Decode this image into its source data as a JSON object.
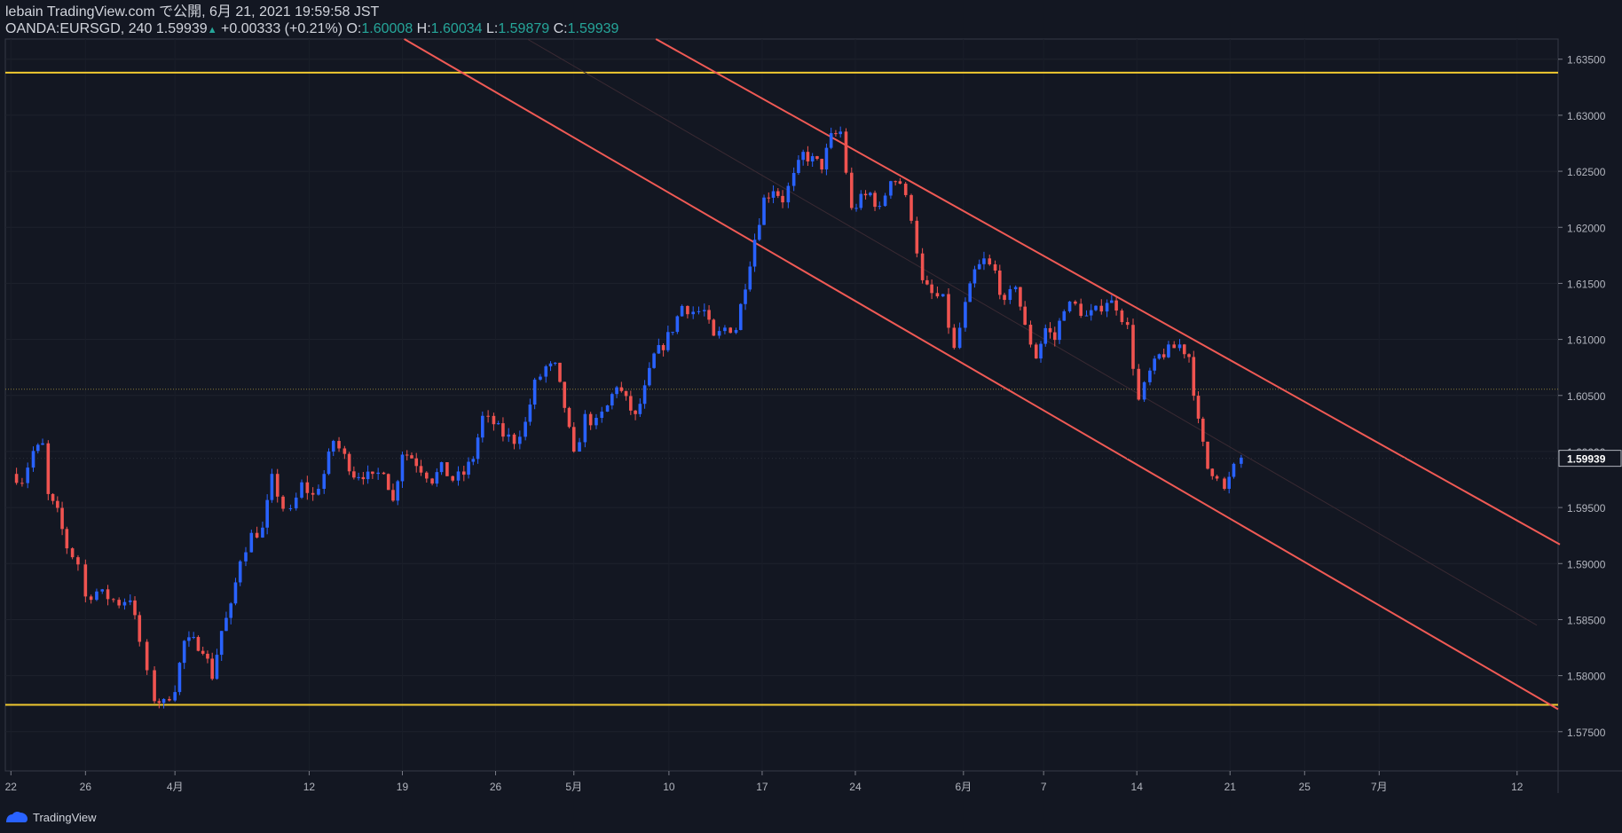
{
  "header": {
    "line1": "lebain TradingView.com で公開, 6月 21, 2021 19:59:58 JST",
    "symbol": "OANDA:EURSGD, 240",
    "last": "1.59939",
    "change": "+0.00333 (+0.21%)",
    "o_label": "O:",
    "o_value": "1.60008",
    "h_label": "H:",
    "h_value": "1.60034",
    "l_label": "L:",
    "l_value": "1.59879",
    "c_label": "C:",
    "c_value": "1.59939"
  },
  "footer": {
    "brand": "TradingView"
  },
  "colors": {
    "background": "#131722",
    "up": "#2962ff",
    "down": "#ef5350",
    "horizontal": "#f0c930",
    "channel": "#f05a55",
    "last_price_tag": "#131722"
  },
  "chart_data": {
    "type": "candlestick",
    "y_ticks": [
      "1.63500",
      "1.63000",
      "1.62500",
      "1.62000",
      "1.61500",
      "1.61000",
      "1.60500",
      "1.60000",
      "1.59500",
      "1.59000",
      "1.58500",
      "1.58000",
      "1.57500"
    ],
    "ylim": [
      1.5715,
      1.6368
    ],
    "last_price_label": "1.59939",
    "x_ticks": [
      {
        "label": "22",
        "pos": 0.0
      },
      {
        "label": "26",
        "pos": 4
      },
      {
        "label": "4月",
        "pos": 8.8
      },
      {
        "label": "12",
        "pos": 16
      },
      {
        "label": "19",
        "pos": 21
      },
      {
        "label": "26",
        "pos": 26
      },
      {
        "label": "5月",
        "pos": 30.2
      },
      {
        "label": "10",
        "pos": 35.3
      },
      {
        "label": "17",
        "pos": 40.3
      },
      {
        "label": "24",
        "pos": 45.3
      },
      {
        "label": "6月",
        "pos": 51.1
      },
      {
        "label": "7",
        "pos": 55.4
      },
      {
        "label": "14",
        "pos": 60.4
      },
      {
        "label": "21",
        "pos": 65.4
      },
      {
        "label": "25",
        "pos": 69.4
      },
      {
        "label": "7月",
        "pos": 73.4
      },
      {
        "label": "12",
        "pos": 80.8
      }
    ],
    "xlim": [
      -0.3,
      83
    ],
    "close_path": [
      [
        0,
        1.598
      ],
      [
        0.6,
        1.5975
      ],
      [
        1.2,
        1.6
      ],
      [
        1.7,
        1.6005
      ],
      [
        2,
        1.596
      ],
      [
        2.5,
        1.5945
      ],
      [
        3,
        1.5915
      ],
      [
        3.6,
        1.59
      ],
      [
        4,
        1.587
      ],
      [
        4.6,
        1.5875
      ],
      [
        5.2,
        1.587
      ],
      [
        5.8,
        1.5865
      ],
      [
        6.4,
        1.587
      ],
      [
        6.9,
        1.583
      ],
      [
        7.3,
        1.58
      ],
      [
        7.7,
        1.578
      ],
      [
        8.2,
        1.5775
      ],
      [
        8.8,
        1.579
      ],
      [
        9.3,
        1.583
      ],
      [
        9.8,
        1.583
      ],
      [
        10.3,
        1.5825
      ],
      [
        10.8,
        1.58
      ],
      [
        11.3,
        1.584
      ],
      [
        11.8,
        1.586
      ],
      [
        12.3,
        1.5905
      ],
      [
        12.9,
        1.5925
      ],
      [
        13.5,
        1.593
      ],
      [
        14.0,
        1.5975
      ],
      [
        14.6,
        1.595
      ],
      [
        15.0,
        1.5945
      ],
      [
        15.6,
        1.597
      ],
      [
        16.2,
        1.596
      ],
      [
        16.8,
        1.598
      ],
      [
        17.3,
        1.601
      ],
      [
        17.9,
        1.5995
      ],
      [
        18.4,
        1.598
      ],
      [
        18.9,
        1.598
      ],
      [
        19.4,
        1.5975
      ],
      [
        20,
        1.5985
      ],
      [
        20.5,
        1.5955
      ],
      [
        21,
        1.6
      ],
      [
        21.5,
        1.5995
      ],
      [
        22,
        1.5985
      ],
      [
        22.6,
        1.5975
      ],
      [
        23.1,
        1.5985
      ],
      [
        23.7,
        1.5975
      ],
      [
        24.3,
        1.598
      ],
      [
        24.8,
        1.5995
      ],
      [
        25.3,
        1.603
      ],
      [
        25.9,
        1.6025
      ],
      [
        26.4,
        1.6015
      ],
      [
        27,
        1.601
      ],
      [
        27.6,
        1.6025
      ],
      [
        28.1,
        1.606
      ],
      [
        28.7,
        1.6075
      ],
      [
        29.2,
        1.6075
      ],
      [
        29.7,
        1.604
      ],
      [
        30.2,
        1.5995
      ],
      [
        30.8,
        1.603
      ],
      [
        31.4,
        1.6025
      ],
      [
        32,
        1.604
      ],
      [
        32.5,
        1.606
      ],
      [
        33,
        1.6045
      ],
      [
        33.5,
        1.603
      ],
      [
        34.0,
        1.6055
      ],
      [
        34.5,
        1.6085
      ],
      [
        35.0,
        1.6095
      ],
      [
        35.5,
        1.611
      ],
      [
        36,
        1.613
      ],
      [
        36.6,
        1.6125
      ],
      [
        37.2,
        1.6125
      ],
      [
        37.7,
        1.61
      ],
      [
        38.3,
        1.611
      ],
      [
        38.9,
        1.611
      ],
      [
        39.4,
        1.615
      ],
      [
        39.9,
        1.619
      ],
      [
        40.4,
        1.6225
      ],
      [
        40.9,
        1.6235
      ],
      [
        41.4,
        1.6225
      ],
      [
        42,
        1.6245
      ],
      [
        42.5,
        1.6265
      ],
      [
        43,
        1.626
      ],
      [
        43.5,
        1.6255
      ],
      [
        44,
        1.628
      ],
      [
        44.5,
        1.6285
      ],
      [
        45.1,
        1.6215
      ],
      [
        45.6,
        1.6225
      ],
      [
        46.1,
        1.623
      ],
      [
        46.6,
        1.6215
      ],
      [
        47.2,
        1.6245
      ],
      [
        47.7,
        1.624
      ],
      [
        48.3,
        1.621
      ],
      [
        48.9,
        1.615
      ],
      [
        49.4,
        1.614
      ],
      [
        50,
        1.6135
      ],
      [
        50.6,
        1.609
      ],
      [
        51.2,
        1.613
      ],
      [
        51.7,
        1.616
      ],
      [
        52.2,
        1.617
      ],
      [
        52.8,
        1.616
      ],
      [
        53.3,
        1.613
      ],
      [
        53.9,
        1.615
      ],
      [
        54.4,
        1.611
      ],
      [
        55,
        1.6085
      ],
      [
        55.5,
        1.611
      ],
      [
        56,
        1.61
      ],
      [
        56.5,
        1.613
      ],
      [
        57.1,
        1.613
      ],
      [
        57.7,
        1.612
      ],
      [
        58.2,
        1.6125
      ],
      [
        58.8,
        1.6135
      ],
      [
        59.3,
        1.613
      ],
      [
        59.9,
        1.611
      ],
      [
        60.5,
        1.6045
      ],
      [
        61.1,
        1.607
      ],
      [
        61.6,
        1.6085
      ],
      [
        62.1,
        1.609
      ],
      [
        62.7,
        1.6095
      ],
      [
        63.2,
        1.6085
      ],
      [
        63.7,
        1.6025
      ],
      [
        64.2,
        1.5985
      ],
      [
        64.7,
        1.598
      ],
      [
        65.1,
        1.5965
      ],
      [
        65.6,
        1.5985
      ],
      [
        66,
        1.5994
      ]
    ]
  }
}
